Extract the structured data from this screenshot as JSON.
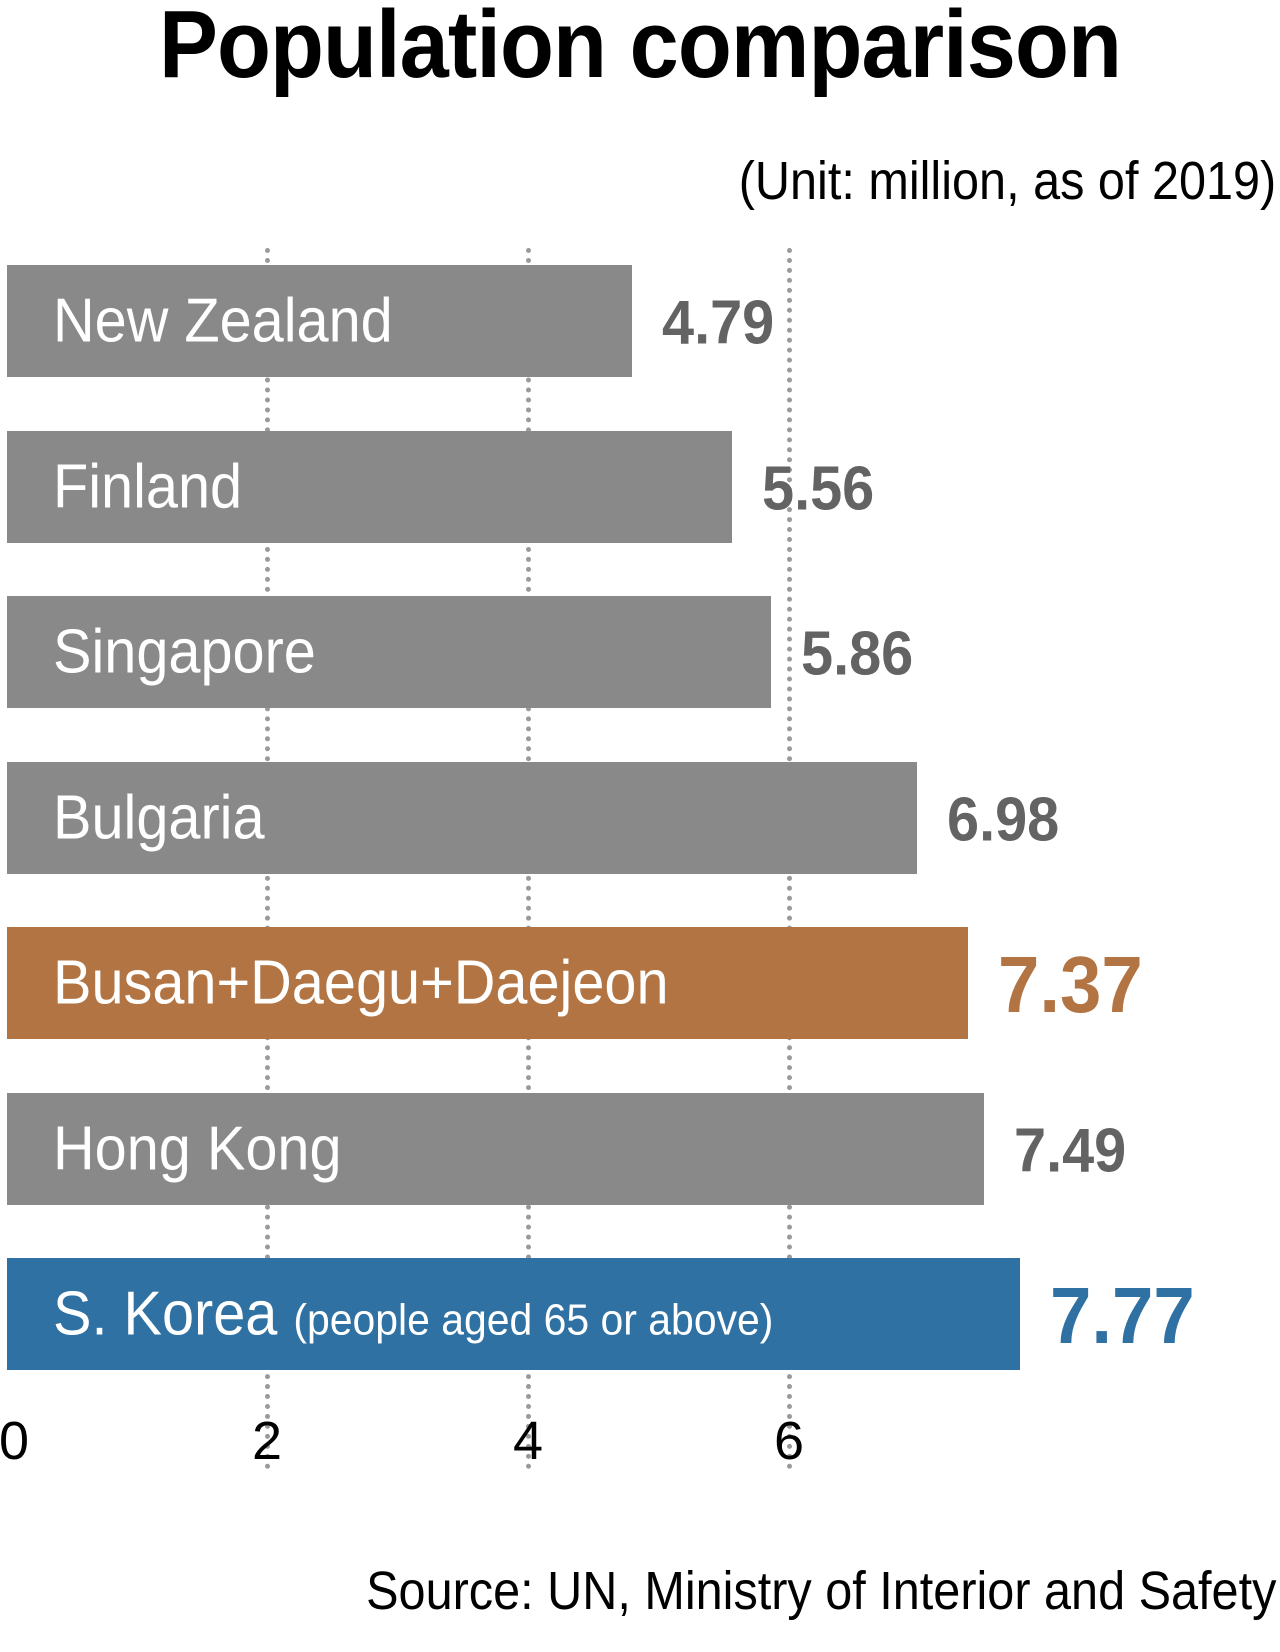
{
  "title": "Population comparison",
  "unit_note": "(Unit: million, as of 2019)",
  "source": "Source: UN, Ministry of Interior and Safety",
  "colors": {
    "default_bar": "#898989",
    "default_value": "#636363",
    "highlight_orange": "#b27442",
    "highlight_blue": "#2f71a2",
    "grid": "#9a9a9a"
  },
  "axis": {
    "ticks": [
      "0",
      "2",
      "4",
      "6"
    ]
  },
  "bars": [
    {
      "label": "New Zealand",
      "sub": "",
      "value": "4.79"
    },
    {
      "label": "Finland",
      "sub": "",
      "value": "5.56"
    },
    {
      "label": "Singapore",
      "sub": "",
      "value": "5.86"
    },
    {
      "label": "Bulgaria",
      "sub": "",
      "value": "6.98"
    },
    {
      "label": "Busan+Daegu+Daejeon",
      "sub": "",
      "value": "7.37"
    },
    {
      "label": "Hong Kong",
      "sub": "",
      "value": "7.49"
    },
    {
      "label": "S. Korea",
      "sub": "(people aged 65 or above)",
      "value": "7.77"
    }
  ],
  "chart_data": {
    "type": "bar",
    "orientation": "horizontal",
    "title": "Population comparison",
    "subtitle": "(Unit: million, as of 2019)",
    "categories": [
      "New Zealand",
      "Finland",
      "Singapore",
      "Bulgaria",
      "Busan+Daegu+Daejeon",
      "Hong Kong",
      "S. Korea (people aged 65 or above)"
    ],
    "values": [
      4.79,
      5.56,
      5.86,
      6.98,
      7.37,
      7.49,
      7.77
    ],
    "highlighted": {
      "Busan+Daegu+Daejeon": "#b27442",
      "S. Korea (people aged 65 or above)": "#2f71a2"
    },
    "xlabel": "",
    "ylabel": "",
    "xticks": [
      0,
      2,
      4,
      6
    ],
    "xlim": [
      0,
      8
    ],
    "grid": "vertical dotted",
    "legend": "none",
    "source": "Source: UN, Ministry of Interior and Safety"
  }
}
